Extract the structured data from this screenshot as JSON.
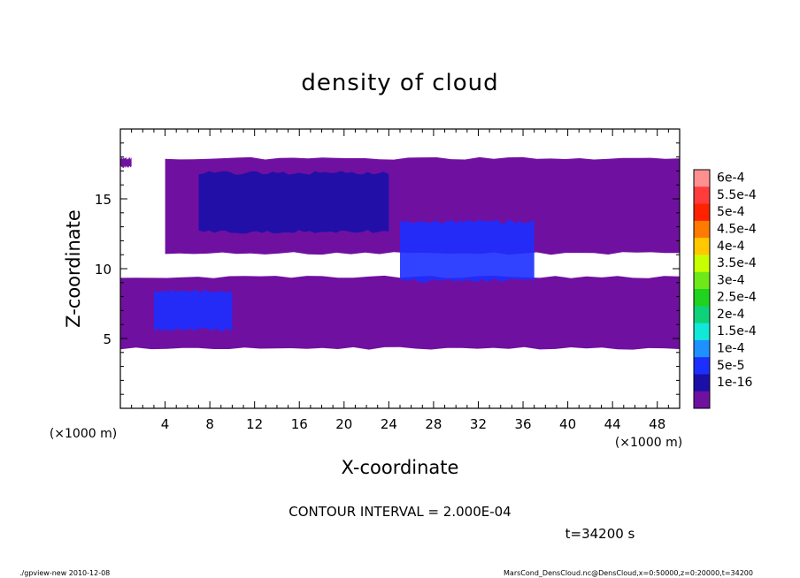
{
  "chart_data": {
    "type": "heatmap",
    "title": "density of cloud",
    "xlabel": "X-coordinate",
    "ylabel": "Z-coordinate",
    "x_unit": "(×1000 m)",
    "y_unit": "(×1000 m)",
    "xlim": [
      0,
      50
    ],
    "ylim": [
      0,
      20
    ],
    "x_ticks": [
      4,
      8,
      12,
      16,
      20,
      24,
      28,
      32,
      36,
      40,
      44,
      48
    ],
    "y_ticks": [
      5,
      10,
      15
    ],
    "colorbar": {
      "labels": [
        "6e-4",
        "5.5e-4",
        "5e-4",
        "4.5e-4",
        "4e-4",
        "3.5e-4",
        "3e-4",
        "2.5e-4",
        "2e-4",
        "1.5e-4",
        "1e-4",
        "5e-5",
        "1e-16"
      ],
      "colors": [
        "#ff9090",
        "#ff3b3b",
        "#ff2200",
        "#ff7a00",
        "#ffc800",
        "#c8ff00",
        "#6fe81a",
        "#1fd31f",
        "#0ed27a",
        "#12e8d8",
        "#1e90ff",
        "#1c2fff",
        "#1a10a8",
        "#7010a0"
      ]
    },
    "regions": [
      {
        "band": [
          17.2,
          18.0
        ],
        "x": [
          0,
          1.0
        ],
        "level": 0
      },
      {
        "band": [
          11.0,
          18.0
        ],
        "x": [
          4,
          50
        ],
        "level": 0
      },
      {
        "band": [
          4.2,
          9.5
        ],
        "x": [
          0,
          50
        ],
        "level": 0
      },
      {
        "band": [
          12.5,
          17.0
        ],
        "x": [
          7,
          24
        ],
        "level": 1
      },
      {
        "band": [
          9.0,
          13.5
        ],
        "x": [
          25,
          37
        ],
        "level": 2
      },
      {
        "band": [
          5.5,
          8.5
        ],
        "x": [
          3,
          10
        ],
        "level": 2
      }
    ]
  },
  "contour_interval": "CONTOUR INTERVAL = 2.000E-04",
  "time_label": "t=34200 s",
  "footer_left": "./gpview-new   2010-12-08",
  "footer_right": "MarsCond_DensCloud.nc@DensCloud,x=0:50000,z=0:20000,t=34200"
}
